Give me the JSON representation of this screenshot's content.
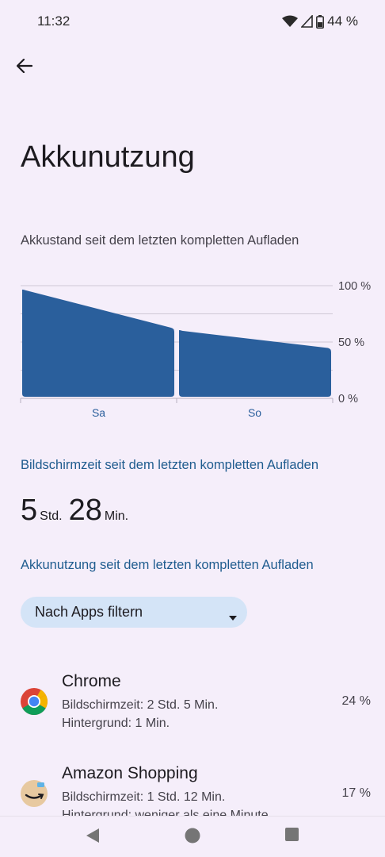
{
  "status_bar": {
    "time": "11:32",
    "battery_text": "44 %"
  },
  "header": {
    "title": "Akkunutzung"
  },
  "chart_section": {
    "caption": "Akkustand seit dem letzten kompletten Aufladen"
  },
  "chart_data": {
    "type": "area",
    "title": "",
    "xlabel": "",
    "ylabel": "",
    "categories": [
      "Sa",
      "So"
    ],
    "y_tick_labels": [
      "100 %",
      "50 %",
      "0 %"
    ],
    "ylim": [
      0,
      100
    ],
    "y_unit": "%",
    "grid": true,
    "segments": [
      {
        "day": "Sa",
        "start": 97,
        "end": 62
      },
      {
        "day": "So",
        "start": 61,
        "end": 44
      }
    ],
    "color": "#2a5f9c"
  },
  "screen_time": {
    "heading": "Bildschirmzeit seit dem letzten kompletten Aufladen",
    "hours": "5",
    "hours_unit": "Std.",
    "minutes": "28",
    "minutes_unit": "Min."
  },
  "battery_usage": {
    "heading": "Akkunutzung seit dem letzten kompletten Aufladen",
    "filter_label": "Nach Apps filtern"
  },
  "apps": [
    {
      "name": "Chrome",
      "screen_time": "Bildschirmzeit: 2 Std. 5 Min.",
      "background": "Hintergrund: 1 Min.",
      "percent": "24 %",
      "icon": "chrome-icon"
    },
    {
      "name": "Amazon Shopping",
      "screen_time": "Bildschirmzeit: 1 Std. 12 Min.",
      "background": "Hintergrund: weniger als eine Minute",
      "percent": "17 %",
      "icon": "amazon-shopping-icon"
    }
  ],
  "colors": {
    "background": "#f5eefa",
    "accent": "#1f5c8f",
    "chart_fill": "#2a5f9c",
    "chip": "#d4e4f7"
  }
}
